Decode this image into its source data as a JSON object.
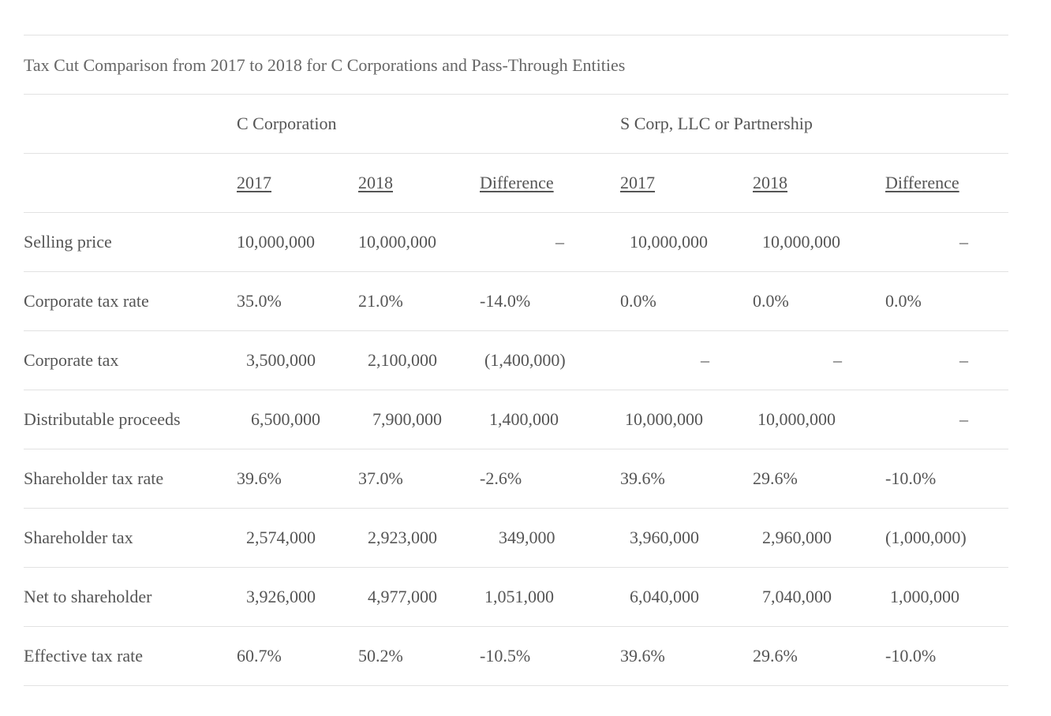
{
  "table": {
    "title": "Tax Cut Comparison from 2017 to 2018 for C Corporations and Pass-Through Entities",
    "groups": [
      "C Corporation",
      "S Corp, LLC or Partnership"
    ],
    "column_headers": [
      "2017",
      "2018",
      "Difference",
      "2017",
      "2018",
      "Difference"
    ],
    "rows": [
      {
        "label": "Selling price",
        "values": [
          "10,000,000",
          "10,000,000",
          "–",
          "10,000,000",
          "10,000,000",
          "–"
        ]
      },
      {
        "label": "Corporate tax rate",
        "values": [
          "35.0%",
          "21.0%",
          "-14.0%",
          "0.0%",
          "0.0%",
          "0.0%"
        ]
      },
      {
        "label": "Corporate tax",
        "values": [
          "3,500,000",
          "2,100,000",
          "(1,400,000)",
          "–",
          "–",
          "–"
        ]
      },
      {
        "label": "Distributable proceeds",
        "values": [
          "6,500,000",
          "7,900,000",
          "1,400,000",
          "10,000,000",
          "10,000,000",
          "–"
        ]
      },
      {
        "label": "Shareholder tax rate",
        "values": [
          "39.6%",
          "37.0%",
          "-2.6%",
          "39.6%",
          "29.6%",
          "-10.0%"
        ]
      },
      {
        "label": "Shareholder tax",
        "values": [
          "2,574,000",
          "2,923,000",
          "349,000",
          "3,960,000",
          "2,960,000",
          "(1,000,000)"
        ]
      },
      {
        "label": "Net to shareholder",
        "values": [
          "3,926,000",
          "4,977,000",
          "1,051,000",
          "6,040,000",
          "7,040,000",
          "1,000,000"
        ]
      },
      {
        "label": "Effective tax rate",
        "values": [
          "60.7%",
          "50.2%",
          "-10.5%",
          "39.6%",
          "29.6%",
          "-10.0%"
        ]
      }
    ]
  }
}
